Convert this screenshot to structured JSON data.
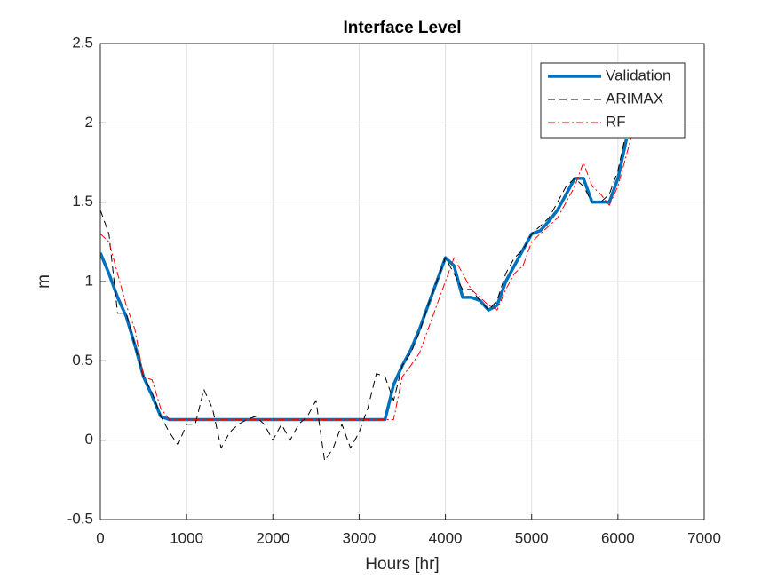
{
  "chart_data": {
    "type": "line",
    "title": "Interface Level",
    "xlabel": "Hours [hr]",
    "ylabel": "m",
    "x": [
      0,
      100,
      200,
      300,
      400,
      500,
      600,
      700,
      800,
      900,
      1000,
      1100,
      1200,
      1300,
      1400,
      1500,
      1600,
      1700,
      1800,
      1900,
      2000,
      2100,
      2200,
      2300,
      2400,
      2500,
      2600,
      2700,
      2800,
      2900,
      3000,
      3100,
      3200,
      3300,
      3400,
      3500,
      3600,
      3700,
      3800,
      3900,
      4000,
      4100,
      4200,
      4300,
      4400,
      4500,
      4600,
      4700,
      4800,
      4900,
      5000,
      5100,
      5200,
      5300,
      5400,
      5500,
      5600,
      5700,
      5800,
      5900,
      6000,
      6100,
      6200
    ],
    "series": [
      {
        "name": "Validation",
        "color": "#0072bd",
        "linestyle": "solid",
        "linewidth": 3.5,
        "values": [
          1.18,
          1.05,
          0.9,
          0.78,
          0.6,
          0.4,
          0.28,
          0.15,
          0.13,
          0.13,
          0.13,
          0.13,
          0.13,
          0.13,
          0.13,
          0.13,
          0.13,
          0.13,
          0.13,
          0.13,
          0.13,
          0.13,
          0.13,
          0.13,
          0.13,
          0.13,
          0.13,
          0.13,
          0.13,
          0.13,
          0.13,
          0.13,
          0.13,
          0.13,
          0.35,
          0.47,
          0.57,
          0.7,
          0.85,
          1.0,
          1.15,
          1.1,
          0.9,
          0.9,
          0.88,
          0.82,
          0.85,
          1.0,
          1.1,
          1.2,
          1.3,
          1.32,
          1.38,
          1.45,
          1.55,
          1.65,
          1.65,
          1.5,
          1.5,
          1.5,
          1.65,
          1.9,
          null
        ]
      },
      {
        "name": "ARIMAX",
        "color": "#000000",
        "linestyle": "dashed",
        "linewidth": 1,
        "values": [
          1.45,
          1.3,
          0.8,
          0.8,
          0.6,
          0.4,
          0.3,
          0.15,
          0.05,
          -0.03,
          0.1,
          0.1,
          0.32,
          0.2,
          -0.05,
          0.05,
          0.1,
          0.13,
          0.15,
          0.1,
          0.0,
          0.1,
          0.0,
          0.1,
          0.15,
          0.25,
          -0.13,
          -0.05,
          0.1,
          -0.05,
          0.05,
          0.2,
          0.42,
          0.4,
          0.25,
          0.47,
          0.55,
          0.68,
          0.85,
          1.0,
          1.15,
          1.05,
          0.95,
          0.95,
          0.88,
          0.82,
          0.88,
          1.05,
          1.15,
          1.2,
          1.3,
          1.35,
          1.4,
          1.5,
          1.6,
          1.65,
          1.6,
          1.5,
          1.5,
          1.55,
          1.7,
          1.95,
          null
        ]
      },
      {
        "name": "RF",
        "color": "#ff0000",
        "linestyle": "dashdot",
        "linewidth": 1,
        "values": [
          1.3,
          1.25,
          1.05,
          0.85,
          0.7,
          0.4,
          0.38,
          0.2,
          0.13,
          0.13,
          0.13,
          0.13,
          0.13,
          0.13,
          0.13,
          0.13,
          0.13,
          0.13,
          0.13,
          0.13,
          0.13,
          0.13,
          0.13,
          0.13,
          0.13,
          0.13,
          0.13,
          0.13,
          0.13,
          0.13,
          0.13,
          0.13,
          0.13,
          0.13,
          0.13,
          0.4,
          0.47,
          0.55,
          0.7,
          0.85,
          1.0,
          1.15,
          1.05,
          0.95,
          0.9,
          0.85,
          0.82,
          0.95,
          1.05,
          1.1,
          1.25,
          1.3,
          1.35,
          1.4,
          1.5,
          1.6,
          1.75,
          1.6,
          1.55,
          1.48,
          1.6,
          1.8,
          2.0
        ]
      }
    ],
    "xlim": [
      0,
      7000
    ],
    "xticks": [
      0,
      1000,
      2000,
      3000,
      4000,
      5000,
      6000,
      7000
    ],
    "ylim": [
      -0.5,
      2.5
    ],
    "yticks": [
      -0.5,
      0,
      0.5,
      1,
      1.5,
      2,
      2.5
    ],
    "grid": true,
    "legend": "northeast"
  }
}
